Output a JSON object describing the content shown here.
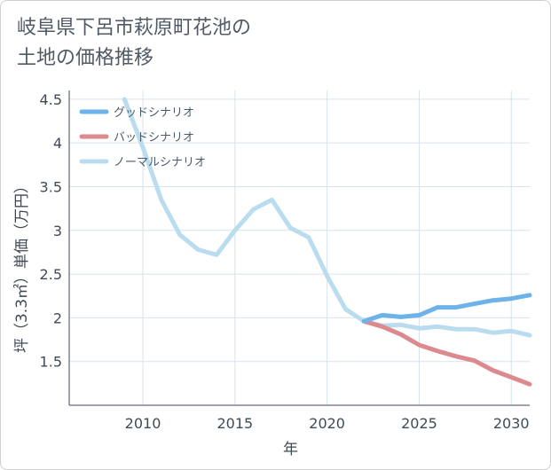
{
  "title_line1": "岐阜県下呂市萩原町花池の",
  "title_line2": "土地の価格推移",
  "chart_data": {
    "type": "line",
    "xlabel": "年",
    "ylabel": "坪（3.3㎡）単価（万円）",
    "xlim": [
      2006,
      2031
    ],
    "ylim": [
      1.0,
      4.6
    ],
    "xticks": [
      2010,
      2015,
      2020,
      2025,
      2030
    ],
    "yticks": [
      1.5,
      2,
      2.5,
      3,
      3.5,
      4,
      4.5
    ],
    "ytick_labels": [
      "1.5",
      "2",
      "2.5",
      "3",
      "3.5",
      "4",
      "4.5"
    ],
    "grid": true,
    "legend_position": "top-left",
    "series": [
      {
        "name": "グッドシナリオ",
        "color": "#6db3ea",
        "x": [
          2022,
          2023,
          2024,
          2025,
          2026,
          2027,
          2028,
          2029,
          2030,
          2031
        ],
        "y": [
          1.96,
          2.03,
          2.01,
          2.03,
          2.12,
          2.12,
          2.16,
          2.2,
          2.22,
          2.26
        ]
      },
      {
        "name": "バッドシナリオ",
        "color": "#dd8a8f",
        "x": [
          2022,
          2023,
          2024,
          2025,
          2026,
          2027,
          2028,
          2029,
          2030,
          2031
        ],
        "y": [
          1.96,
          1.9,
          1.81,
          1.69,
          1.62,
          1.56,
          1.51,
          1.4,
          1.32,
          1.24
        ]
      },
      {
        "name": "ノーマルシナリオ",
        "color": "#b9dcef",
        "x": [
          2009,
          2010,
          2011,
          2012,
          2013,
          2014,
          2015,
          2016,
          2017,
          2018,
          2019,
          2020,
          2021,
          2022,
          2023,
          2024,
          2025,
          2026,
          2027,
          2028,
          2029,
          2030,
          2031
        ],
        "y": [
          4.5,
          3.95,
          3.35,
          2.95,
          2.78,
          2.72,
          3.0,
          3.24,
          3.35,
          3.03,
          2.92,
          2.48,
          2.1,
          1.96,
          1.91,
          1.92,
          1.88,
          1.9,
          1.87,
          1.87,
          1.83,
          1.85,
          1.8
        ]
      }
    ]
  }
}
